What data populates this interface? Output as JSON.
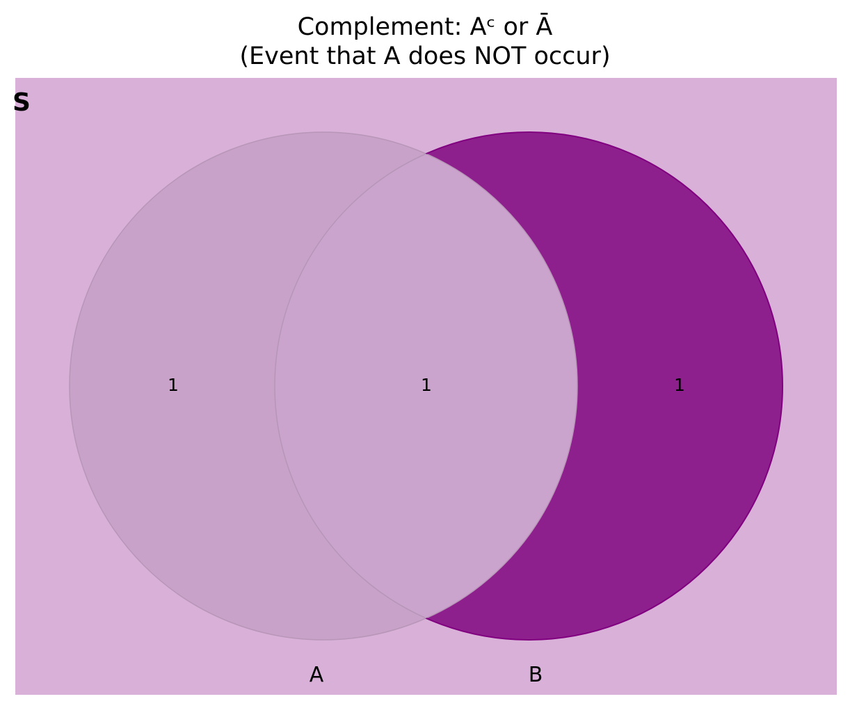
{
  "title": {
    "line1": "Complement: Aᶜ or Ā",
    "line2": "(Event that A does NOT occur)"
  },
  "universe_label": "S",
  "sets": [
    {
      "name": "A",
      "shaded": false
    },
    {
      "name": "B",
      "shaded": true
    }
  ],
  "regions": {
    "a_only": "1",
    "a_and_b": "1",
    "b_only": "1"
  },
  "colors": {
    "universe_fill": "#d8b0d8",
    "circle_a_fill": "#c8a2c8",
    "intersection_fill": "#caa4cc",
    "b_only_fill": "#8e208e",
    "b_edge": "#800080"
  }
}
